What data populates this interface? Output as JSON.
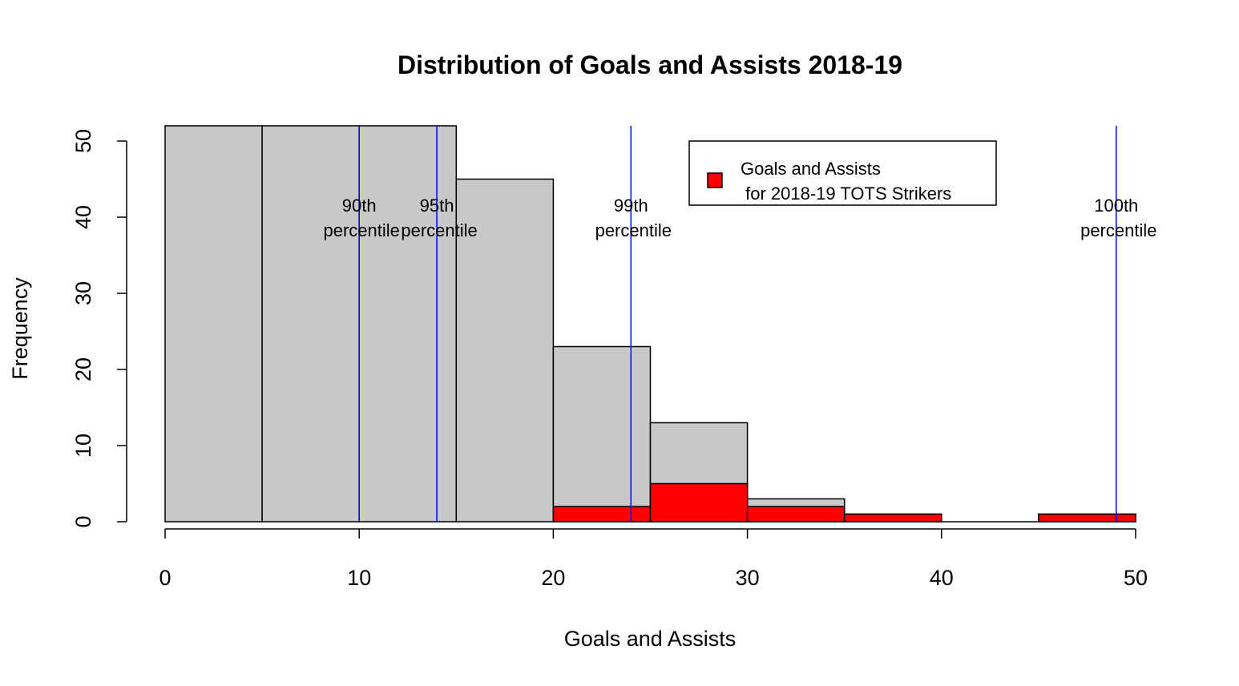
{
  "chart_data": {
    "type": "bar",
    "title": "Distribution of Goals and Assists 2018-19",
    "xlabel": "Goals and Assists",
    "ylabel": "Frequency",
    "xlim": [
      0,
      50
    ],
    "ylim": [
      0,
      50
    ],
    "x_ticks": [
      "0",
      "10",
      "20",
      "30",
      "40",
      "50"
    ],
    "y_ticks": [
      "0",
      "10",
      "20",
      "30",
      "40",
      "50"
    ],
    "grid": false,
    "legend_position": "top-right",
    "bins": [
      [
        0,
        5
      ],
      [
        5,
        10
      ],
      [
        10,
        15
      ],
      [
        15,
        20
      ],
      [
        20,
        25
      ],
      [
        25,
        30
      ],
      [
        30,
        35
      ],
      [
        35,
        40
      ],
      [
        40,
        45
      ],
      [
        45,
        50
      ]
    ],
    "series": [
      {
        "values": [
          52,
          52,
          52,
          45,
          23,
          13,
          3,
          1,
          0,
          1
        ],
        "color": "#c8c8c8"
      },
      {
        "name": "Goals and Assists\n for 2018-19 TOTS Strikers",
        "values": [
          0,
          0,
          0,
          0,
          2,
          5,
          2,
          1,
          0,
          1
        ],
        "color": "#ff0000"
      }
    ],
    "percentile_lines": [
      {
        "x": 10,
        "line1": "90th",
        "line2": "percentile"
      },
      {
        "x": 14,
        "line1": "95th",
        "line2": "percentile"
      },
      {
        "x": 24,
        "line1": "99th",
        "line2": "percentile"
      },
      {
        "x": 49,
        "line1": "100th",
        "line2": "percentile"
      }
    ],
    "line_color": "#0000ff",
    "legend": {
      "line1": "Goals and Assists",
      "line2": " for 2018-19 TOTS Strikers"
    }
  }
}
